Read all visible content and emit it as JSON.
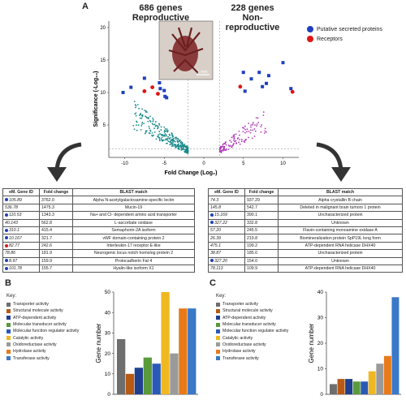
{
  "panels": {
    "a": "A",
    "b": "B",
    "c": "C"
  },
  "volcano": {
    "left_header_count": "686 genes",
    "left_header_label": "Reproductive",
    "right_header_count": "228 genes",
    "right_header_label": "Non-reproductive",
    "legend": [
      {
        "label": "Putative secreted proteins",
        "color": "#1f3fbf"
      },
      {
        "label": "Receptors",
        "color": "#e01414"
      }
    ],
    "xlabel": "Fold Change (Log₂)",
    "ylabel": "Significance (-Log₁₀)",
    "inset_label": "1 mm"
  },
  "chart_data": [
    {
      "type": "scatter",
      "xlabel": "Fold Change (Log₂)",
      "ylabel": "Significance (-Log₁₀)",
      "xlim": [
        -12,
        12
      ],
      "ylim": [
        0,
        21
      ],
      "x_ticks": [
        "-10",
        "-5",
        "0",
        "5",
        "10"
      ],
      "y_ticks": [
        "5",
        "10",
        "15",
        "20"
      ],
      "series": [
        {
          "name": "Putative secreted proteins",
          "color": "#1f3fbf",
          "points": [
            [
              -10.2,
              10.0
            ],
            [
              -9.2,
              10.8
            ],
            [
              -7.5,
              12.2
            ],
            [
              -5.6,
              11.5
            ],
            [
              -5.5,
              10.6
            ],
            [
              -5.0,
              10.3
            ],
            [
              -4.9,
              9.4
            ],
            [
              -4.7,
              9.2
            ],
            [
              5.2,
              10.2
            ],
            [
              5.0,
              13.1
            ],
            [
              6.0,
              12.1
            ],
            [
              7.0,
              13.1
            ],
            [
              7.4,
              10.9
            ],
            [
              7.9,
              11.4
            ],
            [
              8.2,
              12.6
            ],
            [
              10.0,
              14.6
            ],
            [
              11.0,
              10.6
            ]
          ]
        },
        {
          "name": "Receptors",
          "color": "#e01414",
          "points": [
            [
              -7.5,
              10.2
            ],
            [
              -6.5,
              10.8
            ],
            [
              -5.8,
              9.8
            ],
            [
              4.6,
              10.9
            ],
            [
              11.2,
              10.1
            ]
          ]
        }
      ]
    },
    {
      "type": "bar",
      "ylabel": "Gene number",
      "ylim": [
        0,
        50
      ],
      "y_ticks": [
        "0",
        "10",
        "20",
        "30",
        "40",
        "50"
      ],
      "categories": [
        "Transporter activity",
        "Structural molecule activity",
        "ATP-dependent activity",
        "Molecular transducer activity",
        "Molecular function regulator activity",
        "Catalytic activity",
        "Oxidoreductase activity",
        "Hydrolase activity",
        "Transferase activity"
      ],
      "values": [
        27,
        10,
        13,
        18,
        15,
        50,
        20,
        42,
        42
      ]
    },
    {
      "type": "bar",
      "ylabel": "Gene number",
      "ylim": [
        0,
        40
      ],
      "y_ticks": [
        "0",
        "10",
        "20",
        "30",
        "40"
      ],
      "categories": [
        "Transporter activity",
        "Structural molecule activity",
        "ATP-dependent activity",
        "Molecular transducer activity",
        "Molecular function regulator activity",
        "Catalytic activity",
        "Oxidoreductase activity",
        "Hydrolase activity",
        "Transferase activity"
      ],
      "values": [
        4,
        6,
        6,
        5,
        5,
        9,
        12,
        15,
        38
      ]
    }
  ],
  "bar_colors": [
    "#6e6e6e",
    "#b85a14",
    "#1f3f8f",
    "#5a9a3a",
    "#2a5ab8",
    "#f0b820",
    "#9a9a9a",
    "#e87a1a",
    "#3a78c8"
  ],
  "key": {
    "title": "Key:",
    "items": [
      "Transporter activity",
      "Structural molecule activity",
      "ATP-dependent activity",
      "Molecular transducer activity",
      "Molecular function regulator activity",
      "Catalytic activity",
      "Oxidoreductase activity",
      "Hydrolase activity",
      "Transferase activity"
    ]
  },
  "table_left": {
    "headers": [
      "eM. Gene ID",
      "Fold change",
      "BLAST match"
    ],
    "rows": [
      {
        "marker": "#1f3fbf",
        "id": "105.89",
        "fc": "3762.0",
        "blast": "Alpha N-acetylgalactosamine-specific lectin"
      },
      {
        "marker": "",
        "id": "536.78",
        "fc": "1475.3",
        "blast": "Mucin-19"
      },
      {
        "marker": "#1f3fbf",
        "id": "110.53",
        "fc": "1343.3",
        "blast": "Na+ and Cl- dependent amino acid transporter"
      },
      {
        "marker": "",
        "id": "40.143",
        "fc": "562.8",
        "blast": "L-ascorbate oxidase"
      },
      {
        "marker": "#1f3fbf",
        "id": "310.1",
        "fc": "415.4",
        "blast": "Semaphorin-2A isoform"
      },
      {
        "marker": "#1f3fbf",
        "id": "10.167",
        "fc": "321.7",
        "blast": "vWF domain-containing protein 2"
      },
      {
        "marker": "#e01414",
        "id": "82.77",
        "fc": "242.6",
        "blast": "Interleukin-17 receptor E-like"
      },
      {
        "marker": "",
        "id": "78.86",
        "fc": "181.9",
        "blast": "Neurogenic locus notch homolog protein 2"
      },
      {
        "marker": "#1f3fbf",
        "id": "8.97",
        "fc": "159.9",
        "blast": "Protocadherin Fat 4"
      },
      {
        "marker": "#1f3fbf",
        "id": "101.78",
        "fc": "155.7",
        "blast": "Hyalin-like isoform X1"
      }
    ]
  },
  "table_right": {
    "headers": [
      "eM. Gene ID",
      "Fold change",
      "BLAST match"
    ],
    "rows": [
      {
        "marker": "",
        "id": "74.3",
        "fc": "937.29",
        "blast": "Alpha crystallin B chain"
      },
      {
        "marker": "",
        "id": "145.8",
        "fc": "542.7",
        "blast": "Deleted in malignant brain tumors 1 protein"
      },
      {
        "marker": "#1f3fbf",
        "id": "15.169",
        "fc": "390.1",
        "blast": "Uncharacterized protein"
      },
      {
        "marker": "#1f3fbf",
        "id": "327.22",
        "fc": "332.8",
        "blast": "Unknown"
      },
      {
        "marker": "",
        "id": "57.20",
        "fc": "245.5",
        "blast": "Flavin-containing monoamine oxidase A"
      },
      {
        "marker": "",
        "id": "26.39",
        "fc": "219.8",
        "blast": "Biomineralization protein SpP19L long form"
      },
      {
        "marker": "",
        "id": "475.1",
        "fc": "199.2",
        "blast": "ATP-dependent RNA helicase DHX40"
      },
      {
        "marker": "",
        "id": "38.87",
        "fc": "185.0",
        "blast": "Uncharacterized protein"
      },
      {
        "marker": "#1f3fbf",
        "id": "327.20",
        "fc": "154.0",
        "blast": "Unknown"
      },
      {
        "marker": "",
        "id": "78.113",
        "fc": "109.9",
        "blast": "ATP-dependent RNA helicase DHX40"
      }
    ]
  }
}
